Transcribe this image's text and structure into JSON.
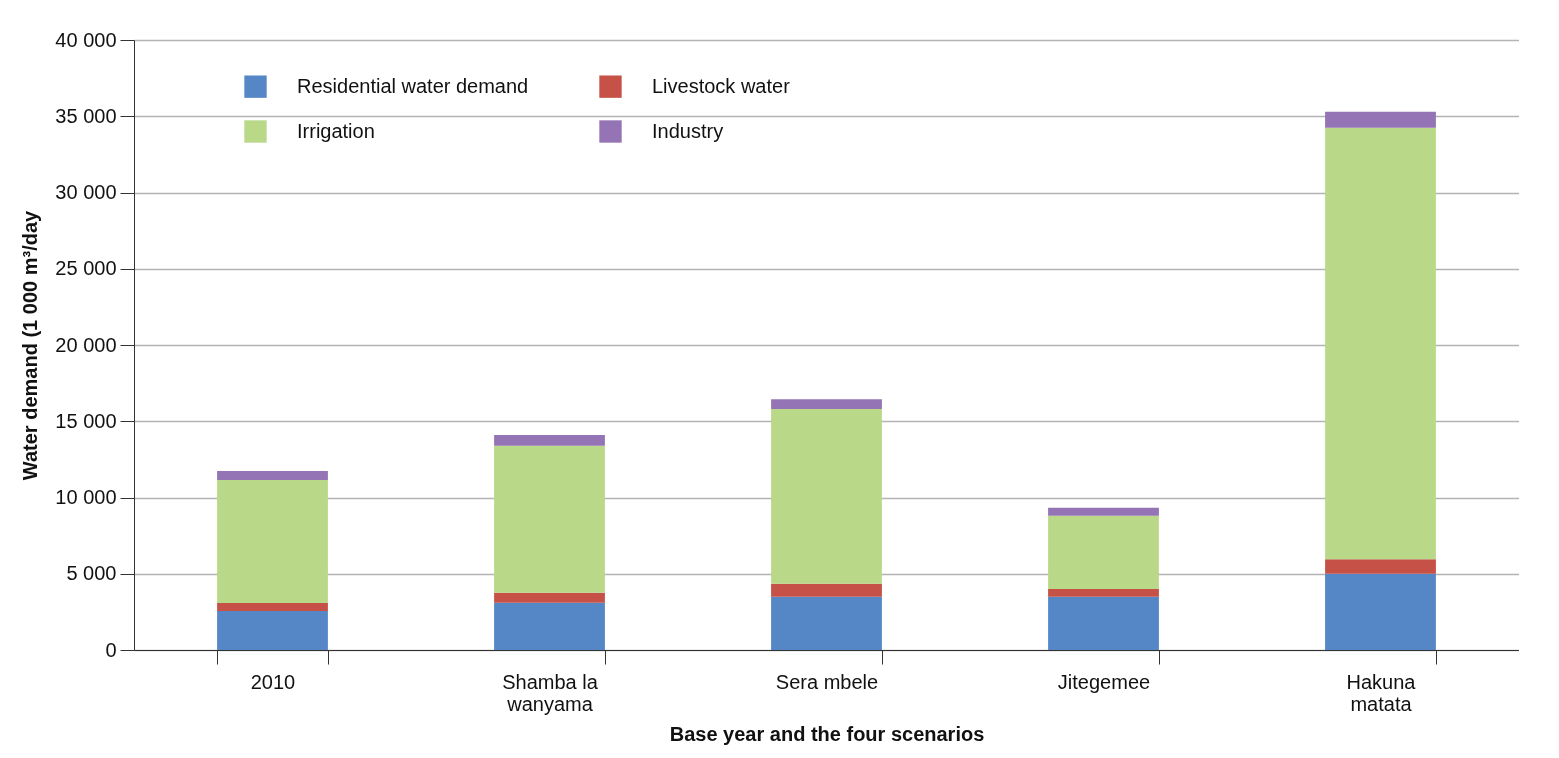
{
  "chart_data": {
    "type": "bar",
    "stacked": true,
    "xlabel": "Base year and the four scenarios",
    "ylabel": "Water demand (1 000 m³/day",
    "categories": [
      "2010",
      "Shamba la wanyama",
      "Sera mbele",
      "Jitegemee",
      "Hakuna matata"
    ],
    "series": [
      {
        "name": "Residential water demand",
        "color": "#5587c7",
        "values": [
          2550,
          3100,
          3500,
          3500,
          5000
        ]
      },
      {
        "name": "Livestock water",
        "color": "#c65146",
        "values": [
          530,
          650,
          850,
          500,
          950
        ]
      },
      {
        "name": "Irrigation",
        "color": "#b9d989",
        "values": [
          8070,
          9650,
          11450,
          4800,
          28300
        ]
      },
      {
        "name": "Industry",
        "color": "#9474b4",
        "values": [
          590,
          700,
          650,
          520,
          1050
        ]
      }
    ],
    "ylim": [
      0,
      40000
    ],
    "yticks": [
      {
        "value": 0,
        "label": "0"
      },
      {
        "value": 5000,
        "label": "5 000"
      },
      {
        "value": 10000,
        "label": "10 000"
      },
      {
        "value": 15000,
        "label": "15 000"
      },
      {
        "value": 20000,
        "label": "20 000"
      },
      {
        "value": 25000,
        "label": "25 000"
      },
      {
        "value": 30000,
        "label": "30 000"
      },
      {
        "value": 35000,
        "label": "35 000"
      },
      {
        "value": 40000,
        "label": "40 000"
      }
    ],
    "grid": "y",
    "legend": "top left"
  }
}
